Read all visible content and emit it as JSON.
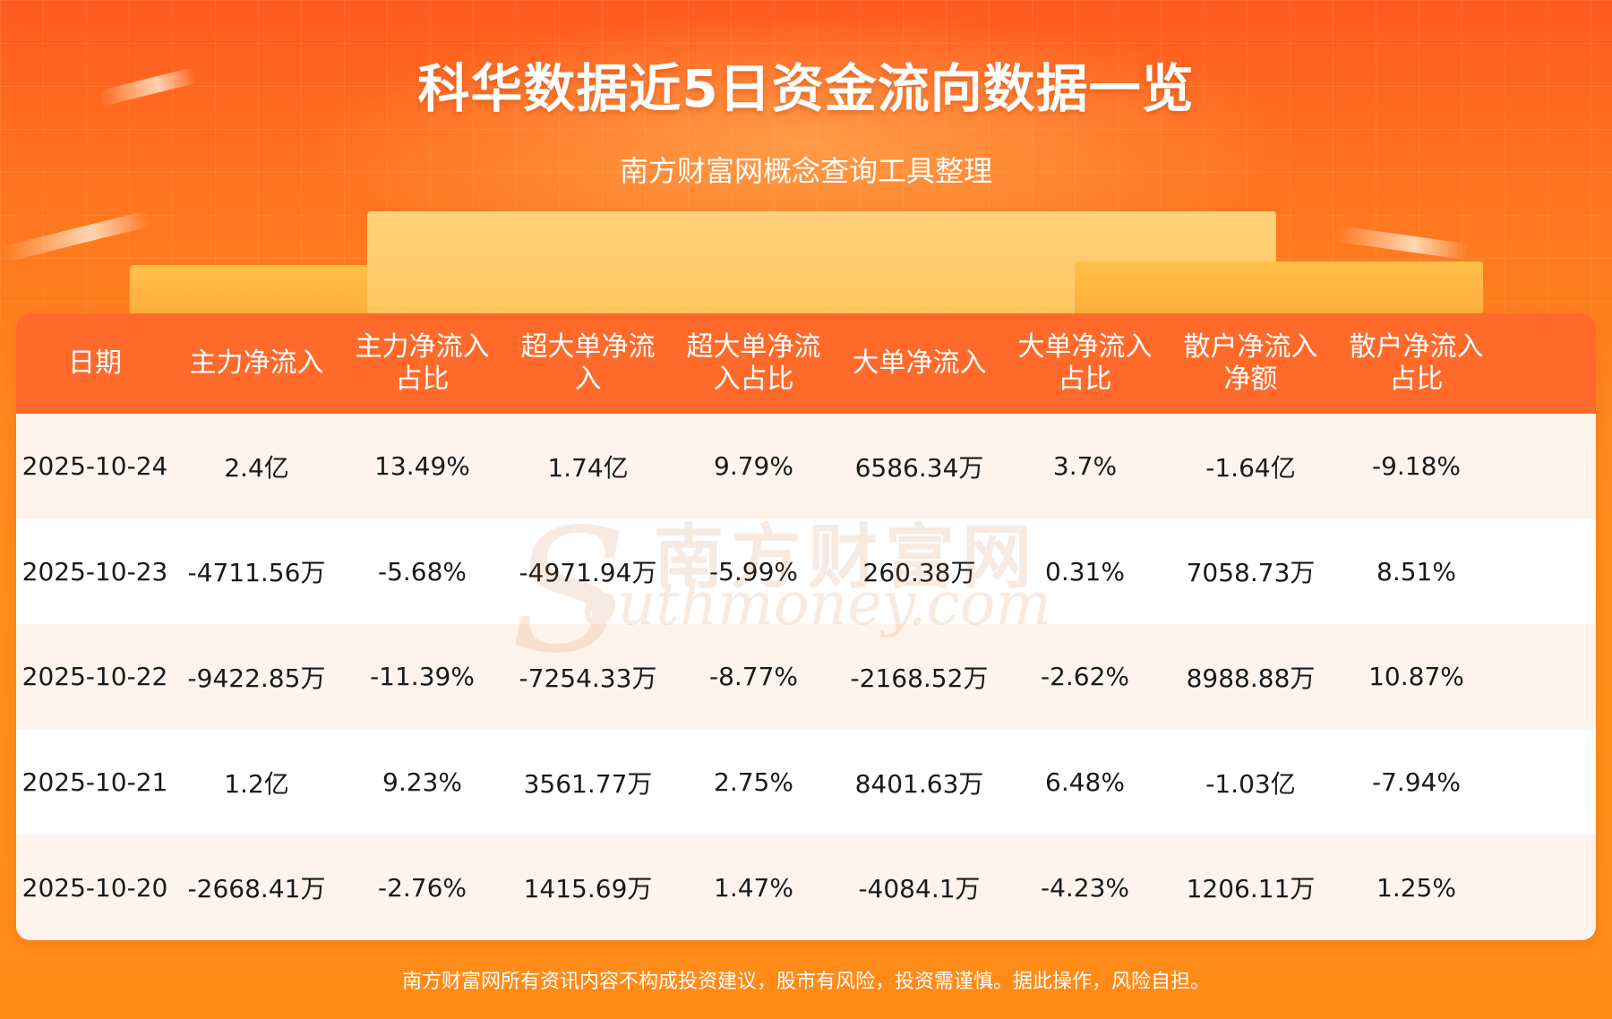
{
  "header": {
    "title": "科华数据近5日资金流向数据一览",
    "subtitle": "南方财富网概念查询工具整理"
  },
  "table": {
    "columns": [
      [
        "日期"
      ],
      [
        "主力净流入"
      ],
      [
        "主力净流入",
        "占比"
      ],
      [
        "超大单净流",
        "入"
      ],
      [
        "超大单净流",
        "入占比"
      ],
      [
        "大单净流入"
      ],
      [
        "大单净流入",
        "占比"
      ],
      [
        "散户净流入",
        "净额"
      ],
      [
        "散户净流入",
        "占比"
      ]
    ],
    "rows": [
      [
        "2025-10-24",
        "2.4亿",
        "13.49%",
        "1.74亿",
        "9.79%",
        "6586.34万",
        "3.7%",
        "-1.64亿",
        "-9.18%"
      ],
      [
        "2025-10-23",
        "-4711.56万",
        "-5.68%",
        "-4971.94万",
        "-5.99%",
        "260.38万",
        "0.31%",
        "7058.73万",
        "8.51%"
      ],
      [
        "2025-10-22",
        "-9422.85万",
        "-11.39%",
        "-7254.33万",
        "-8.77%",
        "-2168.52万",
        "-2.62%",
        "8988.88万",
        "10.87%"
      ],
      [
        "2025-10-21",
        "1.2亿",
        "9.23%",
        "3561.77万",
        "2.75%",
        "8401.63万",
        "6.48%",
        "-1.03亿",
        "-7.94%"
      ],
      [
        "2025-10-20",
        "-2668.41万",
        "-2.76%",
        "1415.69万",
        "1.47%",
        "-4084.1万",
        "-4.23%",
        "1206.11万",
        "1.25%"
      ]
    ]
  },
  "watermark": {
    "cn": "南方财富网",
    "en": "outhmoney.com",
    "s": "S"
  },
  "footer": {
    "disclaimer": "南方财富网所有资讯内容不构成投资建议，股市有风险，投资需谨慎。据此操作，风险自担。"
  },
  "colors": {
    "header_bg": "#ff6a2a",
    "row_odd": "#fff4ec",
    "row_even": "#ffffff",
    "page_orange": "#ff8a1c"
  }
}
